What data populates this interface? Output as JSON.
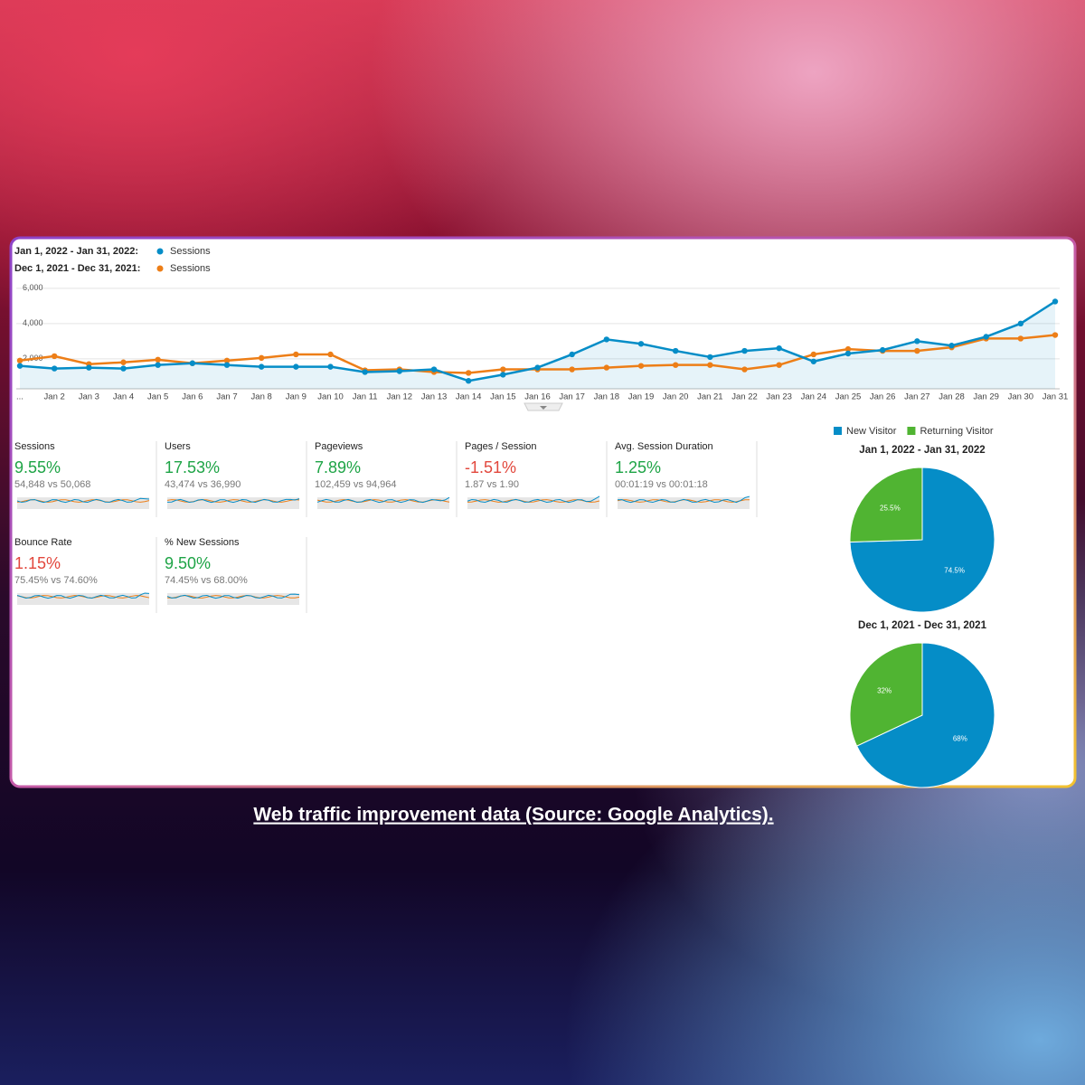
{
  "chart_data": [
    {
      "type": "line",
      "categories": [
        "...",
        "Jan 2",
        "Jan 3",
        "Jan 4",
        "Jan 5",
        "Jan 6",
        "Jan 7",
        "Jan 8",
        "Jan 9",
        "Jan 10",
        "Jan 11",
        "Jan 12",
        "Jan 13",
        "Jan 14",
        "Jan 15",
        "Jan 16",
        "Jan 17",
        "Jan 18",
        "Jan 19",
        "Jan 20",
        "Jan 21",
        "Jan 22",
        "Jan 23",
        "Jan 24",
        "Jan 25",
        "Jan 26",
        "Jan 27",
        "Jan 28",
        "Jan 29",
        "Jan 30",
        "Jan 31"
      ],
      "series": [
        {
          "range": "Jan 1, 2022 - Jan 31, 2022:",
          "name": "Sessions",
          "color": "#058dc7",
          "values": [
            1600,
            1450,
            1500,
            1450,
            1650,
            1750,
            1650,
            1550,
            1550,
            1550,
            1250,
            1300,
            1400,
            750,
            1100,
            1500,
            2250,
            3100,
            2850,
            2450,
            2100,
            2450,
            2600,
            1850,
            2300,
            2500,
            3000,
            2750,
            3250,
            4000,
            5250
          ]
        },
        {
          "range": "Dec 1, 2021 - Dec 31, 2021:",
          "name": "Sessions",
          "color": "#ed7e17",
          "values": [
            1900,
            2150,
            1700,
            1800,
            1950,
            1750,
            1900,
            2050,
            2250,
            2250,
            1350,
            1400,
            1250,
            1200,
            1400,
            1400,
            1400,
            1500,
            1600,
            1650,
            1650,
            1400,
            1650,
            2250,
            2550,
            2450,
            2450,
            2650,
            3150,
            3150,
            3350
          ]
        }
      ],
      "ylim": [
        300,
        6300
      ],
      "yticks": [
        {
          "value": 2000,
          "label": "2,000"
        },
        {
          "value": 4000,
          "label": "4,000"
        },
        {
          "value": 6000,
          "label": "6,000"
        }
      ],
      "grid": true
    },
    {
      "type": "pie",
      "title": "Jan 1, 2022 - Jan 31, 2022",
      "categories": [
        "New Visitor",
        "Returning Visitor"
      ],
      "values": [
        74.5,
        25.5
      ],
      "value_labels": [
        "74.5%",
        "25.5%"
      ],
      "colors": [
        "#058dc7",
        "#50b432"
      ]
    },
    {
      "type": "pie",
      "title": "Dec 1, 2021 - Dec 31, 2021",
      "categories": [
        "New Visitor",
        "Returning Visitor"
      ],
      "values": [
        68,
        32
      ],
      "value_labels": [
        "68%",
        "32%"
      ],
      "colors": [
        "#058dc7",
        "#50b432"
      ]
    }
  ],
  "metrics": [
    {
      "name": "Sessions",
      "change": "9.55%",
      "detail": "54,848 vs 50,068",
      "color": "#1ea446"
    },
    {
      "name": "Users",
      "change": "17.53%",
      "detail": "43,474 vs 36,990",
      "color": "#1ea446"
    },
    {
      "name": "Pageviews",
      "change": "7.89%",
      "detail": "102,459 vs 94,964",
      "color": "#1ea446"
    },
    {
      "name": "Pages / Session",
      "change": "-1.51%",
      "detail": "1.87 vs 1.90",
      "color": "#e2483d"
    },
    {
      "name": "Avg. Session Duration",
      "change": "1.25%",
      "detail": "00:01:19 vs 00:01:18",
      "color": "#1ea446"
    },
    {
      "name": "Bounce Rate",
      "change": "1.15%",
      "detail": "75.45% vs 74.60%",
      "color": "#e2483d"
    },
    {
      "name": "% New Sessions",
      "change": "9.50%",
      "detail": "74.45% vs 68.00%",
      "color": "#1ea446"
    }
  ],
  "caption": "Web traffic improvement data (Source: Google Analytics)."
}
